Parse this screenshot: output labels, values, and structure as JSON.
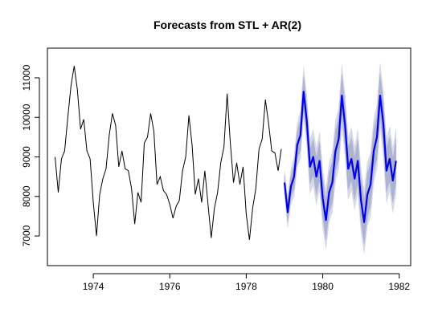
{
  "chart_data": {
    "type": "line",
    "title": "Forecasts from STL +  AR(2)",
    "xlabel": "",
    "ylabel": "",
    "xlim": [
      1972.8,
      1982.3
    ],
    "ylim": [
      6250,
      11750
    ],
    "x_ticks": [
      1974,
      1976,
      1978,
      1980,
      1982
    ],
    "y_ticks": [
      7000,
      8000,
      9000,
      10000,
      11000
    ],
    "grid": false,
    "legend": "none",
    "colors": {
      "history": "#000000",
      "forecast": "#0000ee",
      "band80": "#aeb3d1",
      "band95": "#d6d9e8"
    },
    "history": {
      "start": 1973.0,
      "step": 0.08333333,
      "values": [
        9000,
        8100,
        8950,
        9150,
        10000,
        10800,
        11300,
        10700,
        9700,
        9950,
        9150,
        8950,
        7850,
        7000,
        8050,
        8450,
        8700,
        9550,
        10100,
        9800,
        8750,
        9150,
        8700,
        8650,
        8200,
        7300,
        8100,
        7850,
        9350,
        9500,
        10100,
        9650,
        8300,
        8500,
        8150,
        8050,
        7800,
        7450,
        7750,
        7900,
        8650,
        9000,
        10050,
        9300,
        8050,
        8450,
        7850,
        8650,
        7800,
        6950,
        7700,
        8100,
        8850,
        9250,
        10600,
        9350,
        8350,
        8850,
        8300,
        8750,
        7550,
        6900,
        7700,
        8200,
        9200,
        9450,
        10450,
        9850,
        9150,
        9100,
        8650,
        9200
      ]
    },
    "forecast": {
      "start": 1979.0,
      "step": 0.08333333,
      "values": [
        8350,
        7600,
        8250,
        8500,
        9300,
        9550,
        10650,
        9900,
        8750,
        9000,
        8500,
        8900,
        7950,
        7400,
        8100,
        8350,
        9150,
        9450,
        10550,
        9800,
        8700,
        8950,
        8450,
        8900,
        7900,
        7350,
        8050,
        8300,
        9150,
        9500,
        10550,
        9850,
        8650,
        8950,
        8400,
        8900
      ],
      "band80": [
        180,
        230,
        270,
        310,
        340,
        370,
        390,
        410,
        430,
        445,
        460,
        470,
        480,
        490,
        500,
        505,
        510,
        515,
        520,
        525,
        528,
        530,
        532,
        534,
        536,
        538,
        540,
        541,
        542,
        543,
        544,
        545,
        546,
        547,
        548,
        549
      ],
      "band95": [
        300,
        380,
        440,
        500,
        550,
        590,
        620,
        650,
        670,
        690,
        705,
        715,
        725,
        735,
        745,
        752,
        758,
        764,
        770,
        775,
        778,
        781,
        784,
        787,
        790,
        792,
        794,
        796,
        798,
        800,
        801,
        802,
        803,
        804,
        805,
        806
      ]
    }
  }
}
